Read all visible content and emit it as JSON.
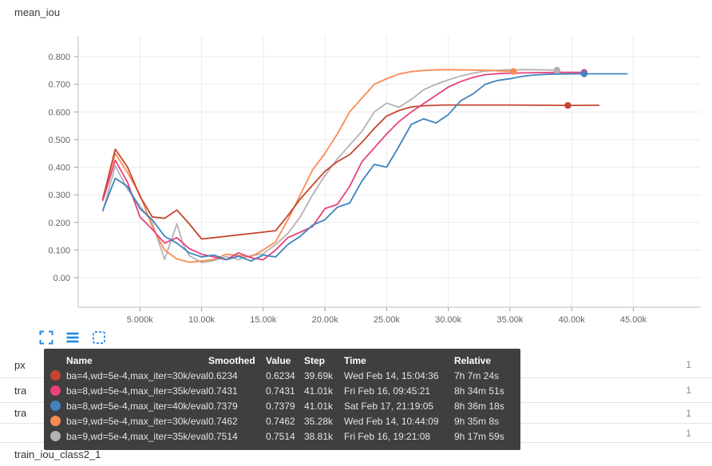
{
  "page": {
    "title": "mean_iou"
  },
  "chart_data": {
    "type": "line",
    "title": "mean_iou",
    "xlabel": "",
    "ylabel": "",
    "grid": true,
    "xlim": [
      0,
      50500
    ],
    "ylim": [
      0,
      0.875
    ],
    "x_axis": {
      "tick_values": [
        5000,
        10000,
        15000,
        20000,
        25000,
        30000,
        35000,
        40000,
        45000
      ],
      "tick_labels": [
        "5.000k",
        "10.00k",
        "15.00k",
        "20.00k",
        "25.00k",
        "30.00k",
        "35.00k",
        "40.00k",
        "45.00k"
      ]
    },
    "y_axis": {
      "tick_values": [
        0,
        0.1,
        0.2,
        0.3,
        0.4,
        0.5,
        0.6,
        0.7,
        0.8
      ],
      "tick_labels": [
        "0.00",
        "0.100",
        "0.200",
        "0.300",
        "0.400",
        "0.500",
        "0.600",
        "0.700",
        "0.800"
      ]
    },
    "series": [
      {
        "name": "ba=4,wd=5e-4,max_iter=30k/eval",
        "color": "#c5452e",
        "end_dot": [
          39690,
          0.6234
        ],
        "points": [
          [
            2000,
            0.285
          ],
          [
            3000,
            0.465
          ],
          [
            4000,
            0.4
          ],
          [
            5000,
            0.295
          ],
          [
            6000,
            0.22
          ],
          [
            7000,
            0.215
          ],
          [
            8000,
            0.245
          ],
          [
            9000,
            0.195
          ],
          [
            10000,
            0.14
          ],
          [
            11000,
            0.145
          ],
          [
            12000,
            0.15
          ],
          [
            13000,
            0.155
          ],
          [
            14000,
            0.16
          ],
          [
            15000,
            0.165
          ],
          [
            16000,
            0.17
          ],
          [
            17000,
            0.225
          ],
          [
            18000,
            0.285
          ],
          [
            19000,
            0.335
          ],
          [
            20000,
            0.385
          ],
          [
            21000,
            0.42
          ],
          [
            22000,
            0.445
          ],
          [
            23000,
            0.49
          ],
          [
            24000,
            0.54
          ],
          [
            25000,
            0.585
          ],
          [
            26000,
            0.605
          ],
          [
            27000,
            0.618
          ],
          [
            28000,
            0.622
          ],
          [
            29500,
            0.625
          ],
          [
            32000,
            0.625
          ],
          [
            35000,
            0.625
          ],
          [
            38000,
            0.624
          ],
          [
            39690,
            0.6234
          ],
          [
            42200,
            0.624
          ]
        ]
      },
      {
        "name": "ba=8,wd=5e-4,max_iter=35k/eval",
        "color": "#e8417c",
        "end_dot": [
          41010,
          0.7431
        ],
        "points": [
          [
            2000,
            0.28
          ],
          [
            3000,
            0.425
          ],
          [
            4000,
            0.345
          ],
          [
            5000,
            0.22
          ],
          [
            6000,
            0.175
          ],
          [
            7000,
            0.125
          ],
          [
            8000,
            0.145
          ],
          [
            9000,
            0.105
          ],
          [
            10000,
            0.085
          ],
          [
            11000,
            0.075
          ],
          [
            12000,
            0.065
          ],
          [
            13000,
            0.09
          ],
          [
            14000,
            0.072
          ],
          [
            15000,
            0.065
          ],
          [
            16000,
            0.1
          ],
          [
            17000,
            0.145
          ],
          [
            18000,
            0.165
          ],
          [
            19000,
            0.185
          ],
          [
            20000,
            0.25
          ],
          [
            21000,
            0.265
          ],
          [
            22000,
            0.33
          ],
          [
            23000,
            0.42
          ],
          [
            24000,
            0.47
          ],
          [
            25000,
            0.52
          ],
          [
            26000,
            0.565
          ],
          [
            27000,
            0.6
          ],
          [
            28000,
            0.63
          ],
          [
            29000,
            0.66
          ],
          [
            30000,
            0.69
          ],
          [
            31000,
            0.71
          ],
          [
            32000,
            0.725
          ],
          [
            33000,
            0.735
          ],
          [
            34500,
            0.74
          ],
          [
            37000,
            0.742
          ],
          [
            39000,
            0.743
          ],
          [
            41010,
            0.7431
          ]
        ]
      },
      {
        "name": "ba=8,wd=5e-4,max_iter=40k/eval",
        "color": "#3f83bf",
        "end_dot": [
          41010,
          0.7379
        ],
        "points": [
          [
            2000,
            0.245
          ],
          [
            3000,
            0.36
          ],
          [
            4000,
            0.33
          ],
          [
            5000,
            0.25
          ],
          [
            6000,
            0.21
          ],
          [
            7000,
            0.15
          ],
          [
            8000,
            0.125
          ],
          [
            9000,
            0.09
          ],
          [
            10000,
            0.075
          ],
          [
            11000,
            0.082
          ],
          [
            12000,
            0.065
          ],
          [
            13000,
            0.078
          ],
          [
            14000,
            0.06
          ],
          [
            15000,
            0.082
          ],
          [
            16000,
            0.075
          ],
          [
            17000,
            0.12
          ],
          [
            18000,
            0.15
          ],
          [
            19000,
            0.19
          ],
          [
            20000,
            0.21
          ],
          [
            21000,
            0.255
          ],
          [
            22000,
            0.27
          ],
          [
            23000,
            0.35
          ],
          [
            24000,
            0.41
          ],
          [
            25000,
            0.4
          ],
          [
            26000,
            0.475
          ],
          [
            27000,
            0.555
          ],
          [
            28000,
            0.575
          ],
          [
            29000,
            0.56
          ],
          [
            30000,
            0.59
          ],
          [
            31000,
            0.64
          ],
          [
            32000,
            0.665
          ],
          [
            33000,
            0.7
          ],
          [
            34000,
            0.714
          ],
          [
            35000,
            0.72
          ],
          [
            36000,
            0.729
          ],
          [
            37000,
            0.734
          ],
          [
            38500,
            0.737
          ],
          [
            41010,
            0.7379
          ],
          [
            44500,
            0.738
          ]
        ]
      },
      {
        "name": "ba=9,wd=5e-4,max_iter=30k/eval",
        "color": "#fb8a52",
        "end_dot": [
          35280,
          0.7462
        ],
        "points": [
          [
            2000,
            0.29
          ],
          [
            3000,
            0.45
          ],
          [
            4000,
            0.38
          ],
          [
            5000,
            0.3
          ],
          [
            6000,
            0.185
          ],
          [
            7000,
            0.1
          ],
          [
            8000,
            0.068
          ],
          [
            9000,
            0.056
          ],
          [
            10000,
            0.06
          ],
          [
            11000,
            0.066
          ],
          [
            12000,
            0.085
          ],
          [
            13000,
            0.08
          ],
          [
            14000,
            0.076
          ],
          [
            15000,
            0.1
          ],
          [
            16000,
            0.13
          ],
          [
            17000,
            0.21
          ],
          [
            18000,
            0.3
          ],
          [
            19000,
            0.39
          ],
          [
            20000,
            0.45
          ],
          [
            21000,
            0.52
          ],
          [
            22000,
            0.6
          ],
          [
            23000,
            0.65
          ],
          [
            24000,
            0.7
          ],
          [
            25000,
            0.72
          ],
          [
            26000,
            0.737
          ],
          [
            27000,
            0.746
          ],
          [
            28000,
            0.75
          ],
          [
            29500,
            0.753
          ],
          [
            31500,
            0.752
          ],
          [
            33500,
            0.75
          ],
          [
            35280,
            0.7462
          ]
        ]
      },
      {
        "name": "ba=9,wd=5e-4,max_iter=35k/eval",
        "color": "#b3b3b3",
        "end_dot": [
          38810,
          0.7514
        ],
        "points": [
          [
            2000,
            0.24
          ],
          [
            3000,
            0.405
          ],
          [
            4000,
            0.32
          ],
          [
            5000,
            0.26
          ],
          [
            6000,
            0.2
          ],
          [
            7000,
            0.066
          ],
          [
            7500,
            0.13
          ],
          [
            8000,
            0.195
          ],
          [
            8500,
            0.12
          ],
          [
            9000,
            0.08
          ],
          [
            10000,
            0.055
          ],
          [
            11000,
            0.062
          ],
          [
            12000,
            0.076
          ],
          [
            13000,
            0.066
          ],
          [
            14000,
            0.08
          ],
          [
            15000,
            0.086
          ],
          [
            16000,
            0.12
          ],
          [
            17000,
            0.16
          ],
          [
            18000,
            0.22
          ],
          [
            19000,
            0.3
          ],
          [
            20000,
            0.37
          ],
          [
            21000,
            0.43
          ],
          [
            22000,
            0.48
          ],
          [
            23000,
            0.53
          ],
          [
            24000,
            0.6
          ],
          [
            25000,
            0.632
          ],
          [
            26000,
            0.617
          ],
          [
            27000,
            0.645
          ],
          [
            28000,
            0.68
          ],
          [
            29000,
            0.7
          ],
          [
            30000,
            0.716
          ],
          [
            31000,
            0.73
          ],
          [
            32000,
            0.74
          ],
          [
            33000,
            0.748
          ],
          [
            34500,
            0.752
          ],
          [
            36500,
            0.753
          ],
          [
            38810,
            0.7514
          ]
        ]
      }
    ]
  },
  "toolbar": {
    "icons": [
      "expand-icon",
      "list-icon",
      "marquee-zoom-icon"
    ]
  },
  "tooltip": {
    "headers": [
      "Name",
      "Smoothed",
      "Value",
      "Step",
      "Time",
      "Relative"
    ],
    "rows": [
      {
        "color": "#c5452e",
        "name": "ba=4,wd=5e-4,max_iter=30k/eval",
        "smoothed": "0.6234",
        "value": "0.6234",
        "step": "39.69k",
        "time": "Wed Feb 14, 15:04:36",
        "relative": "7h 7m 24s"
      },
      {
        "color": "#e8417c",
        "name": "ba=8,wd=5e-4,max_iter=35k/eval",
        "smoothed": "0.7431",
        "value": "0.7431",
        "step": "41.01k",
        "time": "Fri Feb 16, 09:45:21",
        "relative": "8h 34m 51s"
      },
      {
        "color": "#3f83bf",
        "name": "ba=8,wd=5e-4,max_iter=40k/eval",
        "smoothed": "0.7379",
        "value": "0.7379",
        "step": "41.01k",
        "time": "Sat Feb 17, 21:19:05",
        "relative": "8h 36m 18s"
      },
      {
        "color": "#fb8a52",
        "name": "ba=9,wd=5e-4,max_iter=30k/eval",
        "smoothed": "0.7462",
        "value": "0.7462",
        "step": "35.28k",
        "time": "Wed Feb 14, 10:44:09",
        "relative": "9h 35m 8s"
      },
      {
        "color": "#b3b3b3",
        "name": "ba=9,wd=5e-4,max_iter=35k/eval",
        "smoothed": "0.7514",
        "value": "0.7514",
        "step": "38.81k",
        "time": "Fri Feb 16, 19:21:08",
        "relative": "9h 17m 59s"
      }
    ]
  },
  "run_list": {
    "rows": [
      {
        "label": "px",
        "count": "1"
      },
      {
        "label": "tra",
        "count": "1"
      },
      {
        "label": "tra",
        "count": "1"
      },
      {
        "label": "",
        "count": "1"
      },
      {
        "label": "train_iou_class2_1",
        "count": ""
      }
    ]
  }
}
